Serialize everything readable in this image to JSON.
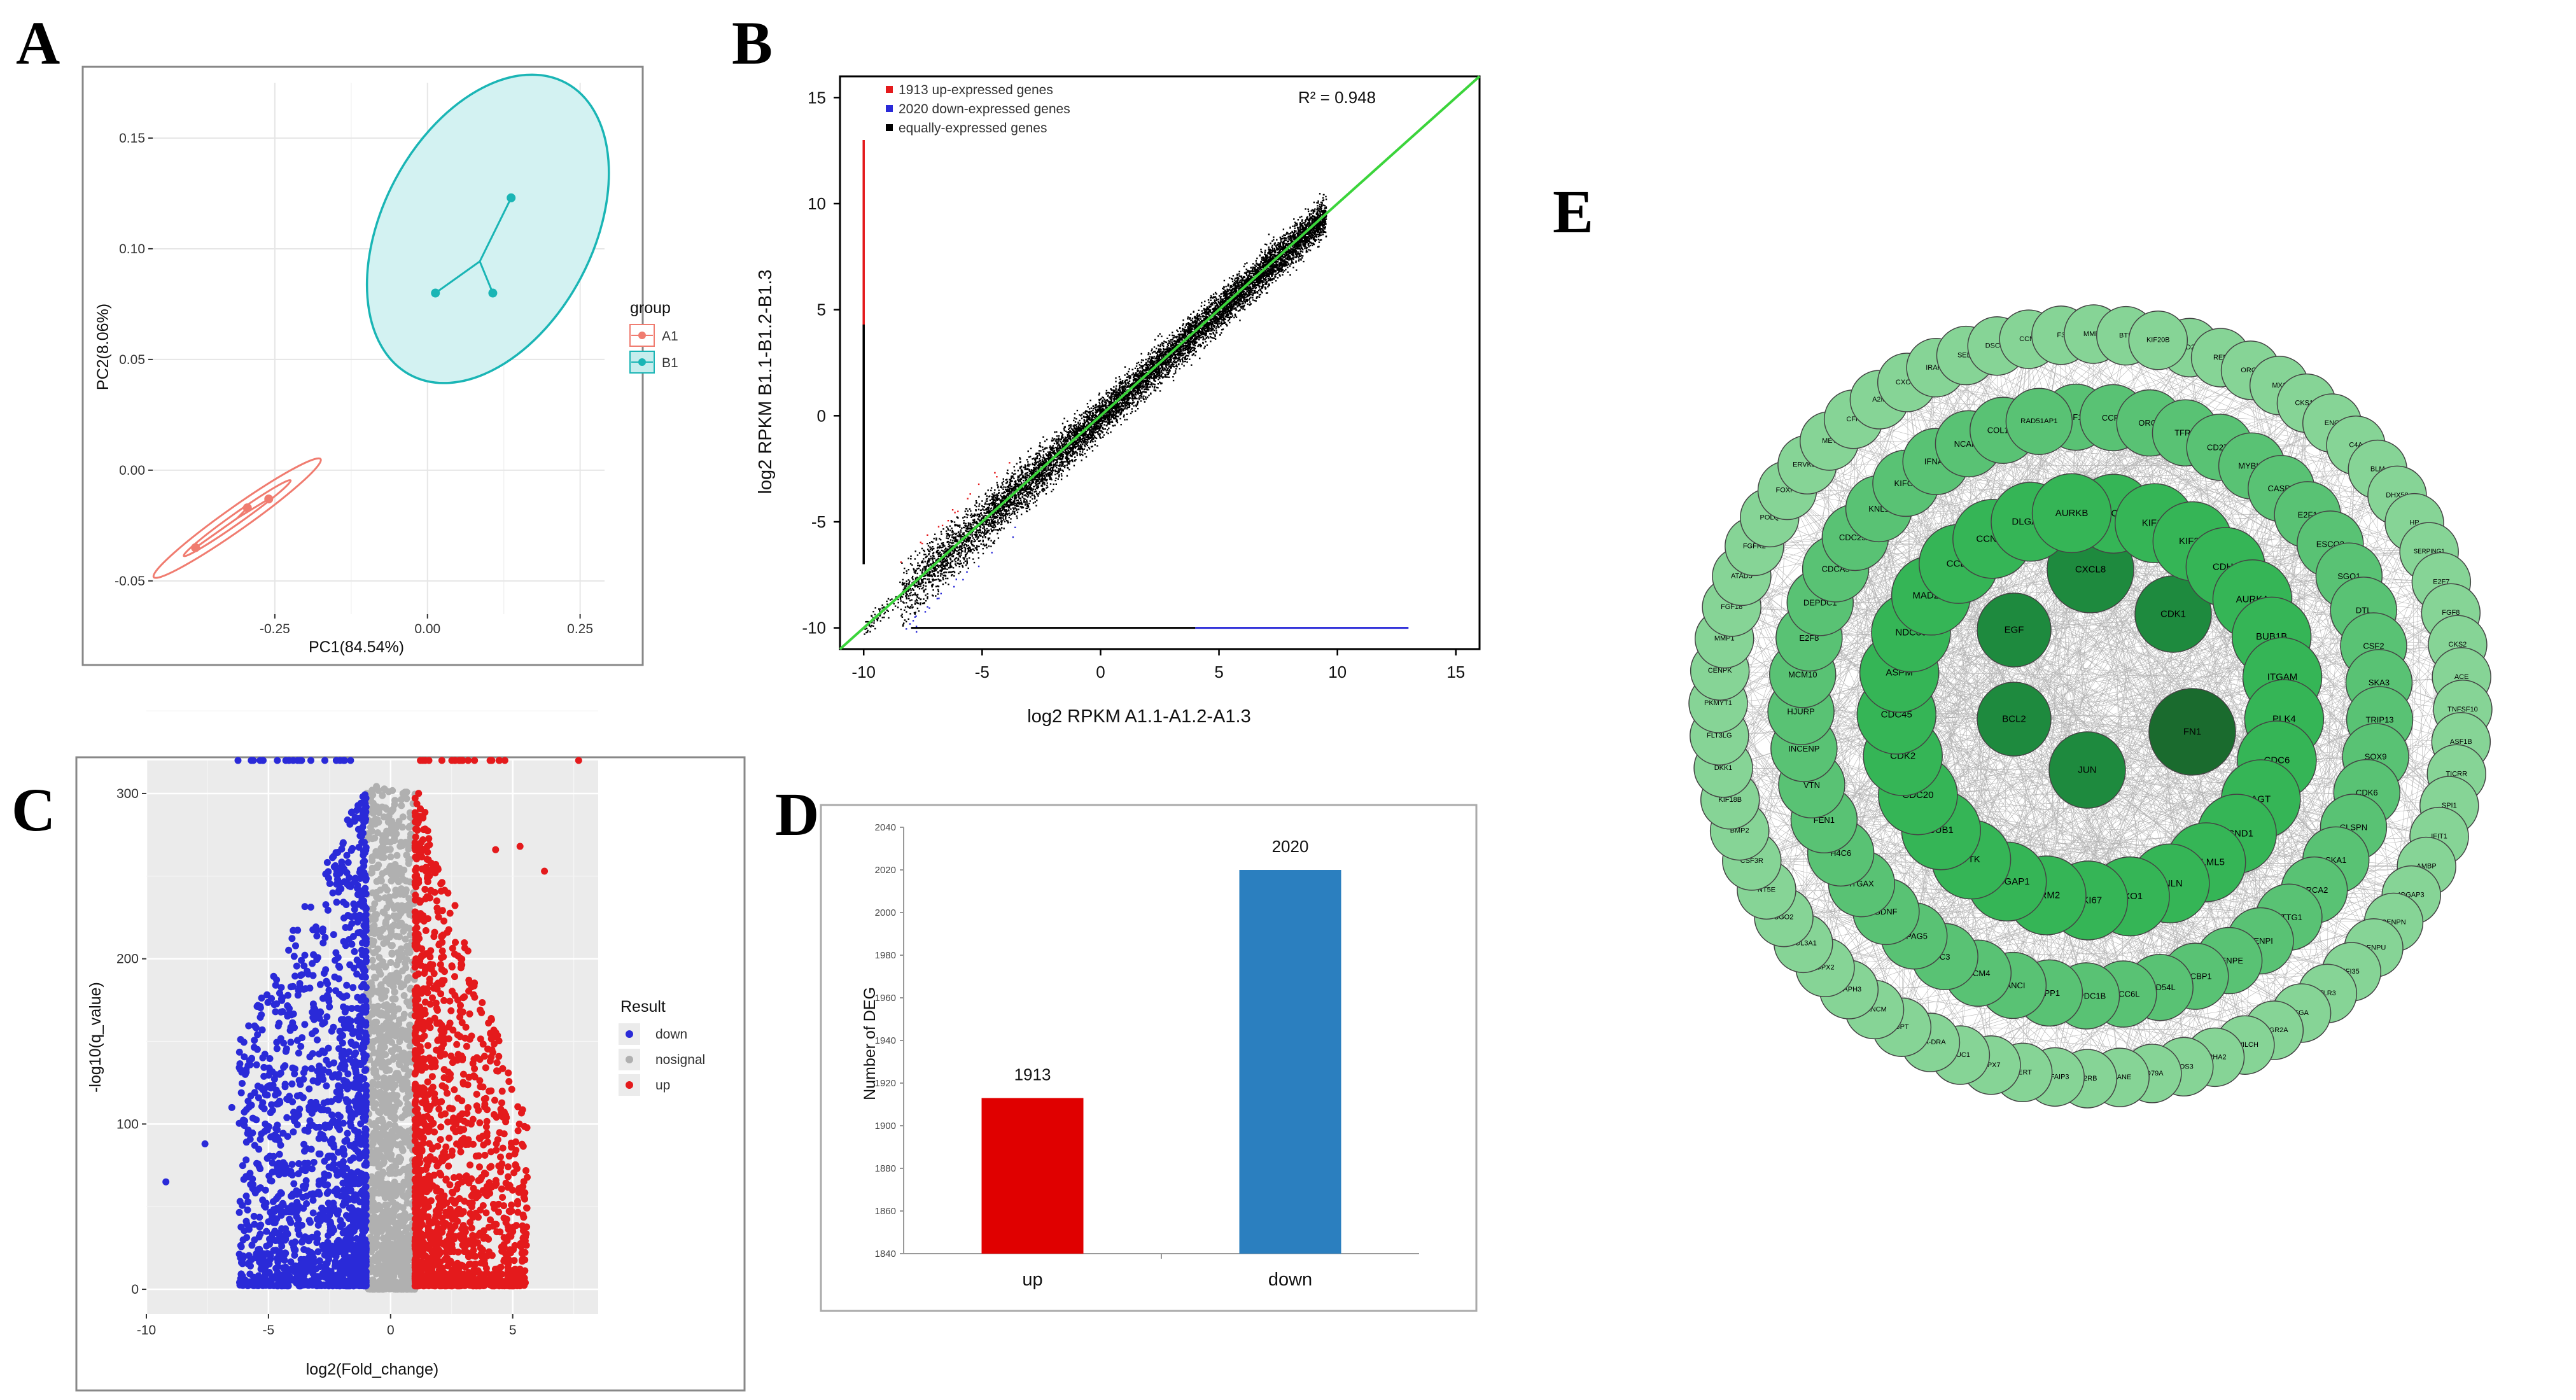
{
  "panel_labels": [
    "A",
    "B",
    "C",
    "D",
    "E"
  ],
  "colors": {
    "red": "#e41a1c",
    "blue": "#2a2ad8",
    "grey": "#b0b0b0",
    "teal": "#1ab5b5",
    "salmon": "#f07c70",
    "barRed": "#e00000",
    "barBlue": "#2b7fbf",
    "panel_bg": "#ebebeb"
  },
  "chart_data": [
    {
      "panel": "A",
      "type": "scatter",
      "xlabel": "PC1(84.54%)",
      "ylabel": "PC2(8.06%)",
      "xlim": [
        -0.45,
        0.29
      ],
      "ylim": [
        -0.065,
        0.175
      ],
      "xticks": [
        -0.25,
        0.0,
        0.25
      ],
      "xtick_labels": [
        "-0.25",
        "0.00",
        "0.25"
      ],
      "yticks": [
        -0.05,
        0.0,
        0.05,
        0.1,
        0.15
      ],
      "ytick_labels": [
        "-0.05",
        "0.00",
        "0.05",
        "0.10",
        "0.15"
      ],
      "legend_title": "group",
      "series": [
        {
          "name": "A1",
          "color": "#f07c70",
          "points": [
            [
              -0.38,
              -0.035
            ],
            [
              -0.295,
              -0.017
            ],
            [
              -0.26,
              -0.013
            ]
          ],
          "centroid": [
            -0.3117,
            -0.0217
          ]
        },
        {
          "name": "B1",
          "color": "#1ab5b5",
          "points": [
            [
              0.013,
              0.08
            ],
            [
              0.137,
              0.123
            ],
            [
              0.107,
              0.08
            ]
          ],
          "centroid": [
            0.0857,
            0.0943
          ]
        }
      ]
    },
    {
      "panel": "B",
      "type": "scatter",
      "xlabel": "log2 RPKM A1.1-A1.2-A1.3",
      "ylabel": "log2 RPKM B1.1-B1.2-B1.3",
      "xlim": [
        -11,
        16
      ],
      "ylim": [
        -11,
        16
      ],
      "xticks": [
        -10,
        -5,
        0,
        5,
        10,
        15
      ],
      "yticks": [
        -10,
        -5,
        0,
        5,
        10,
        15
      ],
      "annotation": "R² = 0.948",
      "legend": [
        {
          "label": "1913 up-expressed genes",
          "color": "#e41a1c"
        },
        {
          "label": "2020 down-expressed genes",
          "color": "#2a2ad8"
        },
        {
          "label": "equally-expressed genes",
          "color": "#000000"
        }
      ],
      "fit_line": [
        [
          -11,
          -11
        ],
        [
          16,
          16
        ]
      ]
    },
    {
      "panel": "C",
      "type": "scatter",
      "xlabel": "log2(Fold_change)",
      "ylabel": "-log10(q_value)",
      "xlim": [
        -10,
        8.5
      ],
      "ylim": [
        -15,
        320
      ],
      "xticks": [
        -10,
        -5,
        0,
        5
      ],
      "yticks": [
        0,
        100,
        200,
        300
      ],
      "legend_title": "Result",
      "legend": [
        {
          "label": "down",
          "color": "#2a2ad8"
        },
        {
          "label": "nosignal",
          "color": "#b0b0b0"
        },
        {
          "label": "up",
          "color": "#e41a1c"
        }
      ]
    },
    {
      "panel": "D",
      "type": "bar",
      "categories": [
        "up",
        "down"
      ],
      "values": [
        1913,
        2020
      ],
      "value_labels": [
        "1913",
        "2020"
      ],
      "colors": [
        "#e00000",
        "#2b7fbf"
      ],
      "ylabel": "Number of DEG",
      "ylim": [
        1840,
        2040
      ],
      "yticks": [
        1840,
        1860,
        1880,
        1900,
        1920,
        1940,
        1960,
        1980,
        2000,
        2020,
        2040
      ]
    },
    {
      "panel": "E",
      "type": "network",
      "rings": [
        {
          "color": "#1e8a3e",
          "nodes": [
            "CXCL8",
            "CDK1",
            "FN1",
            "JUN",
            "BCL2",
            "EGF"
          ]
        },
        {
          "color": "#35b556",
          "nodes": [
            "BRCA1",
            "KIF14",
            "KIF2C",
            "CDH1",
            "AURKA",
            "BUB1B",
            "ITGAM",
            "PLK4",
            "CDC6",
            "AGT",
            "CCND1",
            "CALML5",
            "ANLN",
            "EXO1",
            "MKI67",
            "RRM2",
            "RACGAP1",
            "TTK",
            "BUB1",
            "CDC20",
            "CDK2",
            "CDC45",
            "ASPM",
            "NDC80",
            "MAD2L1",
            "CCL5",
            "CCNB1",
            "DLGAP5",
            "AURKB"
          ]
        },
        {
          "color": "#59c274",
          "nodes": [
            "KIF15",
            "CCR7",
            "ORC1",
            "TFRC",
            "CD274",
            "MYBL2",
            "CASP1",
            "E2F1",
            "ESCO2",
            "SGO1",
            "DTL",
            "CSF2",
            "SKA3",
            "TRIP13",
            "SOX9",
            "CDK6",
            "CLSPN",
            "SKA1",
            "BRCA2",
            "PTTG1",
            "CENPI",
            "CENPE",
            "SHCBP1",
            "RAD54L",
            "ERCC6L",
            "DEPDC1B",
            "SPP1",
            "FANCI",
            "MCM4",
            "C3",
            "SPAG5",
            "BDNF",
            "ITGAX",
            "H4C6",
            "FEN1",
            "VTN",
            "INCENP",
            "HJURP",
            "MCM10",
            "E2F8",
            "DEPDC1",
            "CDCA5",
            "CDC25A",
            "KNL1",
            "KIFC1",
            "IFNA1",
            "NCAPH",
            "COL1A1",
            "RAD51AP1"
          ]
        },
        {
          "color": "#86d496",
          "nodes": [
            "CD27",
            "REN",
            "ORC6",
            "MX1",
            "CKS1B",
            "ENG",
            "C4A",
            "BLM",
            "DHX58",
            "HP",
            "SERPING1",
            "E2F7",
            "FGF8",
            "CKS2",
            "ACE",
            "TNFSF10",
            "ASF1B",
            "TICRR",
            "SPI1",
            "IFIT1",
            "AMBP",
            "IQGAP3",
            "CENPN",
            "CENPU",
            "IFI35",
            "TLR3",
            "FGA",
            "FCGR2A",
            "ZWILCH",
            "EPHA2",
            "NOS3",
            "CD79A",
            "ELANE",
            "IL2RB",
            "TNFAIP3",
            "TERT",
            "GPX7",
            "MUC1",
            "HLA-DRA",
            "GPT",
            "FANCM",
            "DIAPH3",
            "GPX2",
            "COL3A1",
            "SGO2",
            "NT5E",
            "CSF3R",
            "BMP2",
            "KIF18B",
            "DKK1",
            "FLT3LG",
            "PKMYT1",
            "CENPK",
            "MMP1",
            "FGF18",
            "ATAD5",
            "FGFR2",
            "POLQ",
            "FOXP3",
            "ERVK3-1",
            "MET",
            "CFH",
            "A2M",
            "CXCL2",
            "IRAK1",
            "SELL",
            "DSCC1",
            "CCN2",
            "F3",
            "MMP3",
            "BTK",
            "KIF20B"
          ]
        }
      ]
    }
  ]
}
